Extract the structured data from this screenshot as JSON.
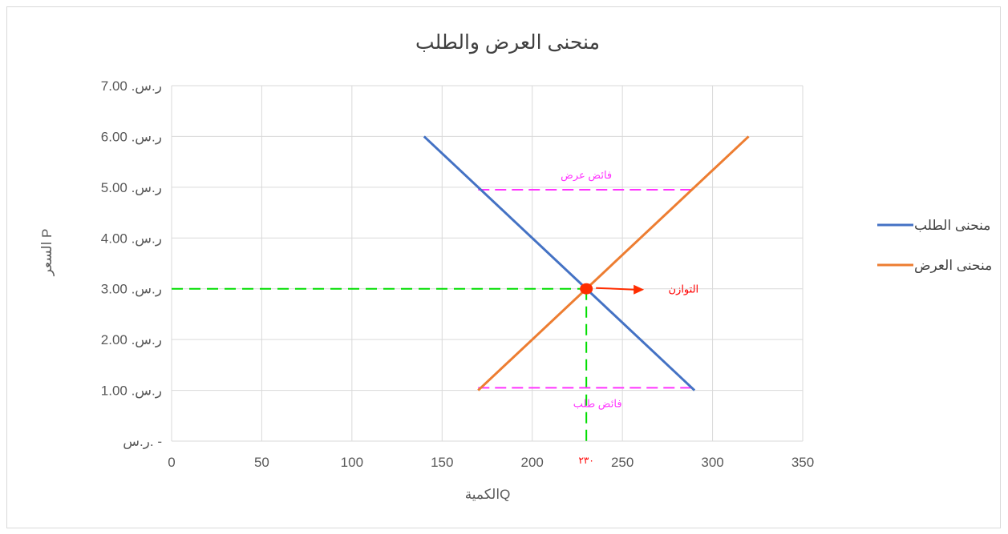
{
  "chart_data": {
    "type": "line",
    "title": "منحنى العرض والطلب",
    "xlabel": "الكميةQ",
    "ylabel": "السعر P",
    "xlim": [
      0,
      350
    ],
    "ylim": [
      0,
      7
    ],
    "x_ticks": [
      "0",
      "50",
      "100",
      "150",
      "200",
      "250",
      "300",
      "350"
    ],
    "x_tick_values": [
      0,
      50,
      100,
      150,
      200,
      250,
      300,
      350
    ],
    "y_ticks": [
      "ر.س. -",
      "ر.س. 1.00",
      "ر.س. 2.00",
      "ر.س. 3.00",
      "ر.س. 4.00",
      "ر.س. 5.00",
      "ر.س. 6.00",
      "ر.س. 7.00"
    ],
    "y_tick_values": [
      0,
      1,
      2,
      3,
      4,
      5,
      6,
      7
    ],
    "grid": true,
    "legend_position": "right",
    "series": [
      {
        "name": "منحنى الطلب",
        "color": "#4472c4",
        "x": [
          140,
          290
        ],
        "y": [
          6,
          1
        ]
      },
      {
        "name": "منحنى العرض",
        "color": "#ed7d31",
        "x": [
          170,
          320
        ],
        "y": [
          1,
          6
        ]
      }
    ],
    "annotations": {
      "equilibrium": {
        "label": "التوازن",
        "x": 230,
        "y": 3,
        "color": "#ff0000",
        "point_color": "#ff2d00"
      },
      "equilibrium_quantity_label": "٢٣٠",
      "surplus_supply": {
        "label": "فائض عرض",
        "x1": 170,
        "x2": 290,
        "y": 4.95,
        "color": "#ff33ff"
      },
      "surplus_demand": {
        "label": "فائض طلب",
        "x1": 170,
        "x2": 290,
        "y": 1.05,
        "color": "#ff33ff"
      },
      "guide_color": "#00dd00"
    }
  }
}
